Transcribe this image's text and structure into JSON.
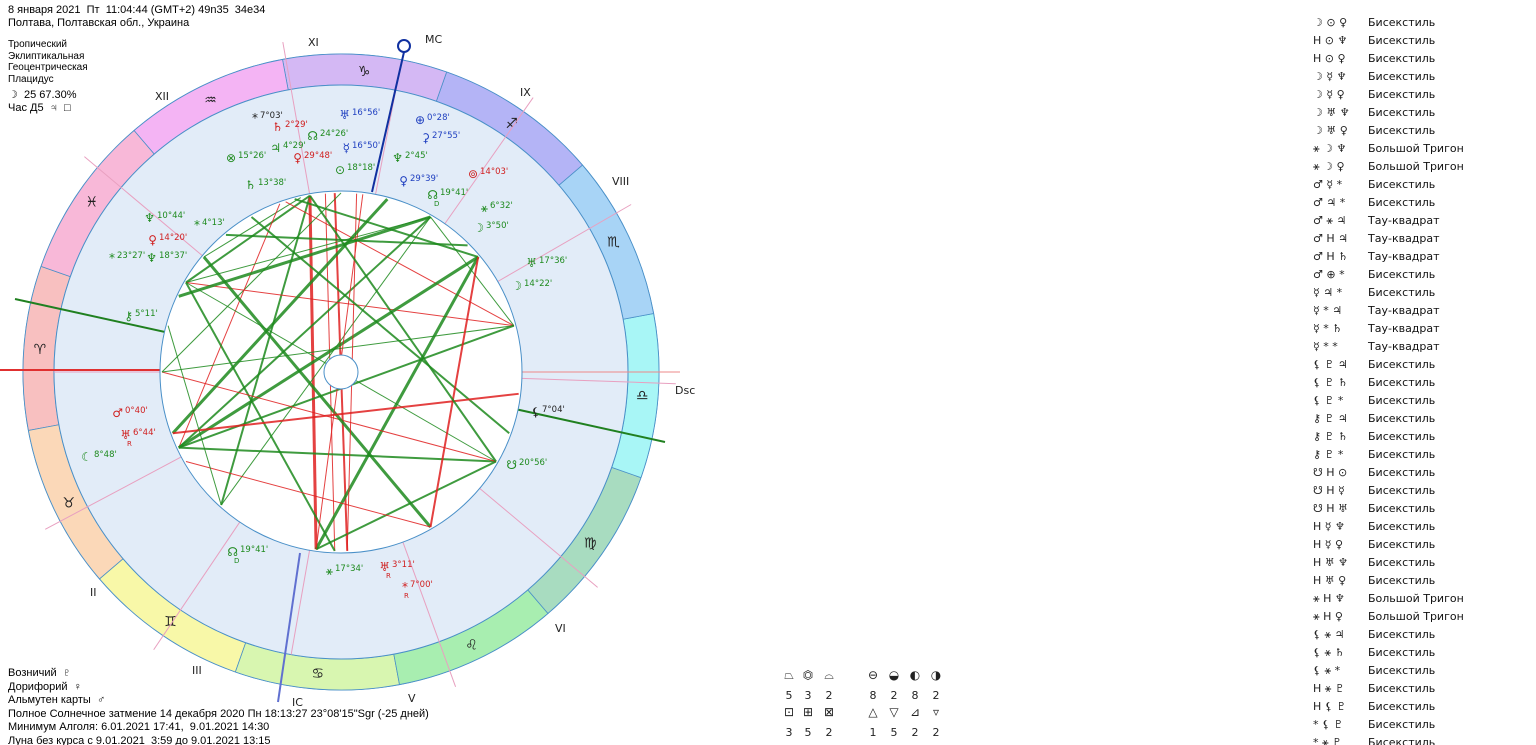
{
  "header": {
    "datetime": "8 января 2021  Пт  11:04:44 (GMT+2) 49n35  34e34",
    "place": "Полтава, Полтавская обл., Украина",
    "settings": [
      "Тропический",
      "Эклиптикальная",
      "Геоцентрическая",
      "Плацидус"
    ],
    "moon": "☽  25 67.30%",
    "hour": "Час Д5  ♃  □"
  },
  "zodiac": [
    "♈",
    "♉",
    "♊",
    "♋",
    "♌",
    "♍",
    "♎",
    "♏",
    "♐",
    "♑",
    "♒",
    "♓"
  ],
  "houses": [
    "MC",
    "XI",
    "XII",
    "II",
    "III",
    "IC",
    "V",
    "VI",
    "Dsc",
    "VIII",
    "IX"
  ],
  "planets": [
    {
      "glyph": "*",
      "text": "7°03'"
    },
    {
      "glyph": "♄",
      "text": "2°29'"
    },
    {
      "glyph": "☊",
      "text": "24°26'"
    },
    {
      "glyph": "♅",
      "text": "16°56'"
    },
    {
      "glyph": "⊕",
      "text": "0°28'"
    },
    {
      "glyph": "⚳",
      "text": "27°55'"
    },
    {
      "glyph": "⊗",
      "text": "15°26'"
    },
    {
      "glyph": "♃",
      "text": "4°29'"
    },
    {
      "glyph": "♀",
      "text": "29°48'"
    },
    {
      "glyph": "☿",
      "text": "16°50'"
    },
    {
      "glyph": "⊙",
      "text": "18°18'"
    },
    {
      "glyph": "♆",
      "text": "2°45'"
    },
    {
      "glyph": "⊚",
      "text": "14°03'"
    },
    {
      "glyph": "♀",
      "text": "29°39'"
    },
    {
      "glyph": "☊",
      "text": "19°41'",
      "sub": "D"
    },
    {
      "glyph": "⚹",
      "text": "6°32'"
    },
    {
      "glyph": "♄",
      "text": "13°38'"
    },
    {
      "glyph": "♆",
      "text": "10°44'"
    },
    {
      "glyph": "*",
      "text": "4°13'"
    },
    {
      "glyph": "♀",
      "text": "14°20'"
    },
    {
      "glyph": "*",
      "text": "23°27'"
    },
    {
      "glyph": "♆",
      "text": "18°37'"
    },
    {
      "glyph": "☽",
      "text": "3°50'"
    },
    {
      "glyph": "♅",
      "text": "17°36'"
    },
    {
      "glyph": "☽",
      "text": "14°22'"
    },
    {
      "glyph": "⚷",
      "text": "5°11'"
    },
    {
      "glyph": "♂",
      "text": "0°40'"
    },
    {
      "glyph": "♅",
      "text": "6°44'",
      "sub": "R"
    },
    {
      "glyph": "☾",
      "text": "8°48'"
    },
    {
      "glyph": "⚸",
      "text": "7°04'"
    },
    {
      "glyph": "☋",
      "text": "20°56'"
    },
    {
      "glyph": "☊",
      "text": "19°41'",
      "sub": "D"
    },
    {
      "glyph": "⚹",
      "text": "17°34'"
    },
    {
      "glyph": "♅",
      "text": "3°11'",
      "sub": "R"
    },
    {
      "glyph": "*",
      "text": "7°00'",
      "sub": "R"
    }
  ],
  "footer": [
    "Возничий  ♇",
    "Дорифорий  ♀",
    "Альмутен карты  ♂",
    "Полное Солнечное затмение 14 декабря 2020 Пн 18:13:27 23°08'15\"Sgr (-25 дней)",
    "Минимум Алголя: 6.01.2021 17:41,  9.01.2021 14:30",
    "Луна без курса с 9.01.2021  3:59 до 9.01.2021 13:15"
  ],
  "stats": {
    "glyphs": [
      [
        "⏢",
        "⏣",
        "⌓",
        "⊖",
        "◒",
        "◐",
        "◑"
      ],
      [
        "⊡",
        "⊞",
        "⊠",
        "△",
        "▽",
        "⊿",
        "▿"
      ]
    ],
    "counts": [
      [
        5,
        3,
        2,
        8,
        2,
        8,
        2
      ],
      [
        3,
        5,
        2,
        1,
        5,
        2,
        2
      ]
    ]
  },
  "aspects": [
    {
      "glyphs": "☽ ⊙ ♀",
      "name": "Бисекстиль"
    },
    {
      "glyphs": "H ⊙ ♆",
      "name": "Бисекстиль"
    },
    {
      "glyphs": "H ⊙ ♀",
      "name": "Бисекстиль"
    },
    {
      "glyphs": "☽ ☿ ♆",
      "name": "Бисекстиль"
    },
    {
      "glyphs": "☽ ☿ ♀",
      "name": "Бисекстиль"
    },
    {
      "glyphs": "☽ ♅ ♆",
      "name": "Бисекстиль"
    },
    {
      "glyphs": "☽ ♅ ♀",
      "name": "Бисекстиль"
    },
    {
      "glyphs": "⚹ ☽ ♆",
      "name": "Большой Тригон"
    },
    {
      "glyphs": "⚹ ☽ ♀",
      "name": "Большой Тригон"
    },
    {
      "glyphs": "♂ ☿ *",
      "name": "Бисекстиль"
    },
    {
      "glyphs": "♂ ♃ *",
      "name": "Бисекстиль"
    },
    {
      "glyphs": "♂ ⚹ ♃",
      "name": "Тау-квадрат"
    },
    {
      "glyphs": "♂ H ♃",
      "name": "Тау-квадрат"
    },
    {
      "glyphs": "♂ H ♄",
      "name": "Тау-квадрат"
    },
    {
      "glyphs": "♂ ⊕ *",
      "name": "Бисекстиль"
    },
    {
      "glyphs": "☿ ♃ *",
      "name": "Бисекстиль"
    },
    {
      "glyphs": "☿ * ♃",
      "name": "Тау-квадрат"
    },
    {
      "glyphs": "☿ * ♄",
      "name": "Тау-квадрат"
    },
    {
      "glyphs": "☿ * *",
      "name": "Тау-квадрат"
    },
    {
      "glyphs": "⚸ ♇ ♃",
      "name": "Бисекстиль"
    },
    {
      "glyphs": "⚸ ♇ ♄",
      "name": "Бисекстиль"
    },
    {
      "glyphs": "⚸ ♇ *",
      "name": "Бисекстиль"
    },
    {
      "glyphs": "⚷ ♇ ♃",
      "name": "Бисекстиль"
    },
    {
      "glyphs": "⚷ ♇ ♄",
      "name": "Бисекстиль"
    },
    {
      "glyphs": "⚷ ♇ *",
      "name": "Бисекстиль"
    },
    {
      "glyphs": "☋ H ⊙",
      "name": "Бисекстиль"
    },
    {
      "glyphs": "☋ H ☿",
      "name": "Бисекстиль"
    },
    {
      "glyphs": "☋ H ♅",
      "name": "Бисекстиль"
    },
    {
      "glyphs": "H ☿ ♆",
      "name": "Бисекстиль"
    },
    {
      "glyphs": "H ☿ ♀",
      "name": "Бисекстиль"
    },
    {
      "glyphs": "H ♅ ♆",
      "name": "Бисекстиль"
    },
    {
      "glyphs": "H ♅ ♀",
      "name": "Бисекстиль"
    },
    {
      "glyphs": "⚹ H ♆",
      "name": "Большой Тригон"
    },
    {
      "glyphs": "⚹ H ♀",
      "name": "Большой Тригон"
    },
    {
      "glyphs": "⚸ ⚹ ♃",
      "name": "Бисекстиль"
    },
    {
      "glyphs": "⚸ ⚹ ♄",
      "name": "Бисекстиль"
    },
    {
      "glyphs": "⚸ ⚹ *",
      "name": "Бисекстиль"
    },
    {
      "glyphs": "H ⚹ ♇",
      "name": "Бисекстиль"
    },
    {
      "glyphs": "H ⚸ ♇",
      "name": "Бисекстиль"
    },
    {
      "glyphs": "* ⚸ ♇",
      "name": "Бисекстиль"
    },
    {
      "glyphs": "* ⚹ ♇",
      "name": "Бисекстиль"
    }
  ]
}
